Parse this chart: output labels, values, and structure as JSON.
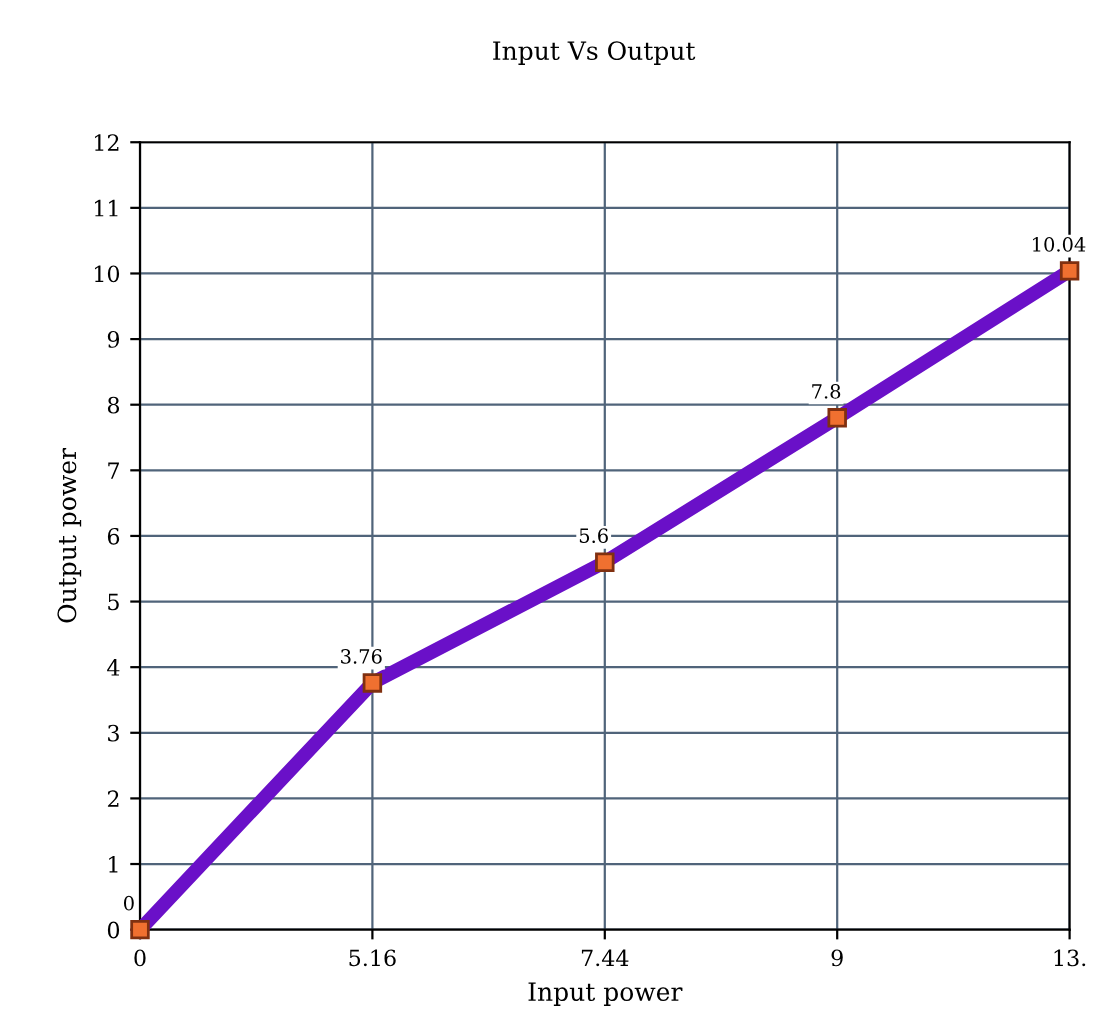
{
  "chart_data": {
    "type": "line",
    "title": "Input Vs Output",
    "xlabel": "Input power",
    "ylabel": "Output power",
    "categories": [
      "0",
      "5.16",
      "7.44",
      "9",
      "13."
    ],
    "series": [
      {
        "color": "#6a10c8",
        "values": [
          0,
          3.76,
          5.6,
          7.8,
          10.04
        ]
      }
    ],
    "ylim": [
      0,
      12
    ],
    "yticks": [
      0,
      1,
      2,
      3,
      4,
      5,
      6,
      7,
      8,
      9,
      10,
      11,
      12
    ],
    "grid": true,
    "marker": "square",
    "line_style": "solid",
    "data_labels": true
  }
}
